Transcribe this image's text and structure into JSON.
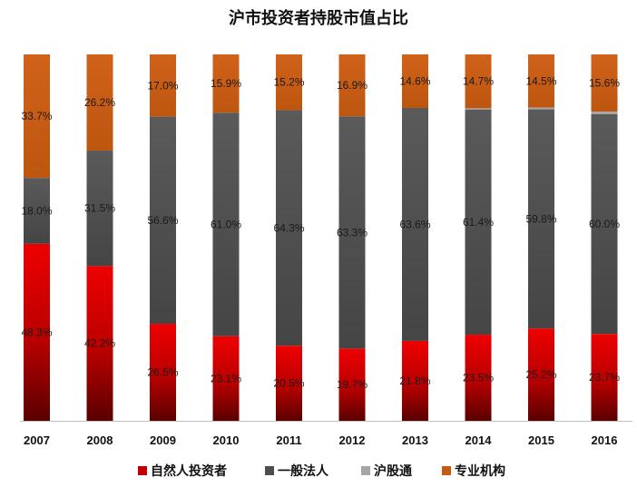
{
  "chart_data": {
    "type": "bar",
    "stacked": true,
    "title": "沪市投资者持股市值占比",
    "categories": [
      "2007",
      "2008",
      "2009",
      "2010",
      "2011",
      "2012",
      "2013",
      "2014",
      "2015",
      "2016"
    ],
    "series": [
      {
        "name": "自然人投资者",
        "color": "#c00000",
        "values": [
          48.3,
          42.2,
          26.5,
          23.1,
          20.5,
          19.7,
          21.8,
          23.5,
          25.2,
          23.7
        ]
      },
      {
        "name": "一般法人",
        "color": "#4d4d4d",
        "values": [
          18.0,
          31.5,
          56.6,
          61.0,
          64.3,
          63.3,
          63.6,
          61.4,
          59.8,
          60.0
        ]
      },
      {
        "name": "沪股通",
        "color": "#a6a6a6",
        "values": [
          0,
          0,
          0,
          0,
          0,
          0,
          0,
          0.4,
          0.5,
          0.7
        ]
      },
      {
        "name": "专业机构",
        "color": "#c55a11",
        "values": [
          33.7,
          26.2,
          17.0,
          15.9,
          15.2,
          16.9,
          14.6,
          14.7,
          14.5,
          15.6
        ]
      }
    ],
    "data_labels": [
      [
        "48.3%",
        "42.2%",
        "26.5%",
        "23.1%",
        "20.5%",
        "19.7%",
        "21.8%",
        "23.5%",
        "25.2%",
        "23.7%"
      ],
      [
        "18.0%",
        "31.5%",
        "56.6%",
        "61.0%",
        "64.3%",
        "63.3%",
        "63.6%",
        "61.4%",
        "59.8%",
        "60.0%"
      ],
      [
        "",
        "",
        "",
        "",
        "",
        "",
        "",
        "",
        "",
        ""
      ],
      [
        "33.7%",
        "26.2%",
        "17.0%",
        "15.9%",
        "15.2%",
        "16.9%",
        "14.6%",
        "14.7%",
        "14.5%",
        "15.6%"
      ]
    ],
    "ylim": [
      0,
      100
    ],
    "grid": false,
    "legend_position": "bottom"
  }
}
